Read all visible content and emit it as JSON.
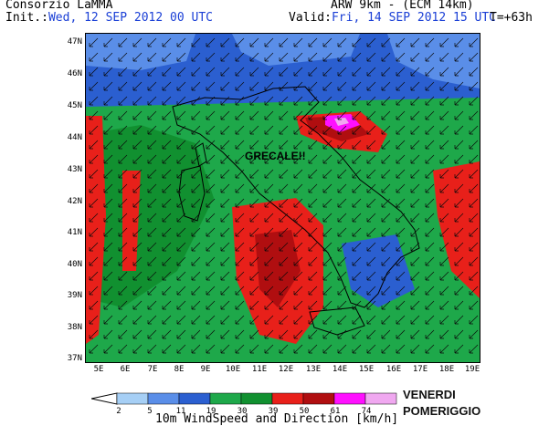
{
  "header": {
    "org": "Consorzio LaMMA",
    "init_label": "Init.:",
    "init_value": "Wed, 12 SEP 2012   00 UTC",
    "valid_label": "Valid:",
    "valid_value": "Fri, 14 SEP 2012   15 UTC",
    "model": "ARW 9km - (ECM 14km)",
    "lead_time": "T=+63h"
  },
  "map": {
    "lat_labels": [
      "47N",
      "46N",
      "45N",
      "44N",
      "43N",
      "42N",
      "41N",
      "40N",
      "39N",
      "38N",
      "37N"
    ],
    "lon_labels": [
      "5E",
      "6E",
      "7E",
      "8E",
      "9E",
      "10E",
      "11E",
      "12E",
      "13E",
      "14E",
      "15E",
      "16E",
      "17E",
      "18E",
      "19E"
    ],
    "annotation": "GRECALE!!"
  },
  "colorbar": {
    "values": [
      "2",
      "5",
      "11",
      "19",
      "30",
      "39",
      "50",
      "61",
      "74"
    ],
    "colors": [
      "#ffffff",
      "#a6cff5",
      "#5a8ee8",
      "#2b5fd0",
      "#1ea84a",
      "#119030",
      "#e8201a",
      "#b00e10",
      "#ff10ff",
      "#f0a8f0"
    ],
    "title": "10m WindSpeed and Direction [km/h]"
  },
  "notes": {
    "day": "VENERDI",
    "period": "POMERIGGIO"
  }
}
